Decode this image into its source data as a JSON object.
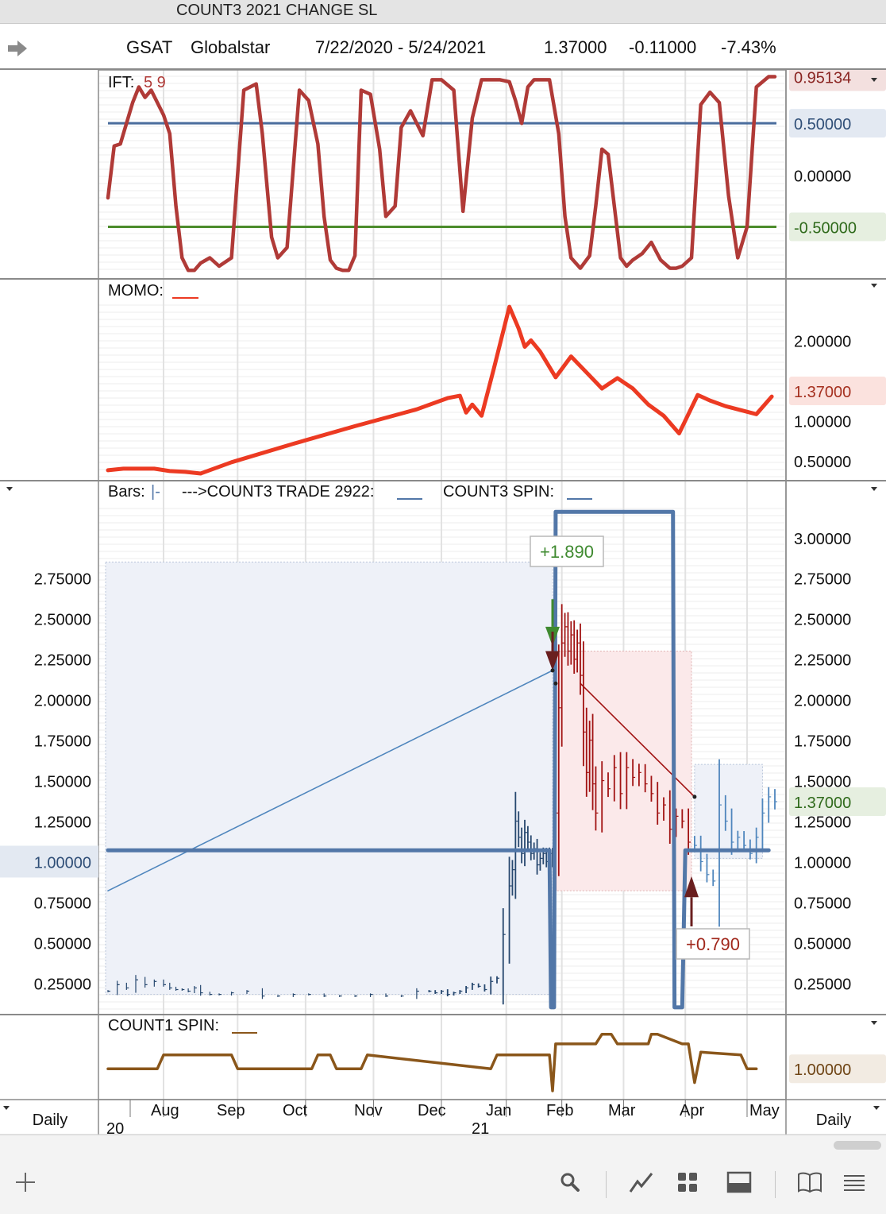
{
  "window": {
    "title": "COUNT3 2021 CHANGE SL"
  },
  "quote": {
    "symbol": "GSAT",
    "name": "Globalstar",
    "range": "7/22/2020 - 5/24/2021",
    "last": "1.37000",
    "change": "-0.11000",
    "change_pct": "-7.43%"
  },
  "footer": {
    "period_left": "Daily",
    "period_right": "Daily",
    "months": [
      "Aug",
      "Sep",
      "Oct",
      "Nov",
      "Dec",
      "Jan",
      "Feb",
      "Mar",
      "Apr",
      "May"
    ],
    "years": [
      {
        "label": "20",
        "under": "start"
      },
      {
        "label": "21",
        "under": "Jan"
      }
    ]
  },
  "toolbar": {
    "icons": [
      "add-icon",
      "search-icon",
      "line-chart-icon",
      "grid-icon",
      "panel-layout-icon",
      "book-icon",
      "menu-icon"
    ]
  },
  "colors": {
    "ift": "#b03a37",
    "momo": "#ec3a22",
    "count3_blue": "#5277a8",
    "blue_thin": "#4f86bd",
    "red_bars": "#a11212",
    "count1_brown": "#8a561a",
    "upper_band": "#4a6d9d",
    "lower_band": "#4c8c2c",
    "green_label": "#3f8a30",
    "red_label": "#a1281c"
  },
  "chart_data": [
    {
      "type": "line",
      "panel": "IFT",
      "title": "IFT:",
      "params": "5 9",
      "ylim": [
        -0.98,
        1.0
      ],
      "y_ticks": [
        "0.50000",
        "0.00000",
        "-0.50000"
      ],
      "last_value": "0.95134",
      "levels": [
        {
          "value": 0.5,
          "label": "0.50000",
          "color": "#4a6d9d"
        },
        {
          "value": -0.5,
          "label": "-0.50000",
          "color": "#4c8c2c"
        }
      ],
      "series": [
        {
          "x": [
            0,
            2,
            4,
            8,
            10,
            12,
            14,
            16,
            18,
            20,
            22,
            24,
            26,
            28,
            30,
            33,
            36,
            40,
            44,
            48,
            50,
            53,
            55,
            58,
            62,
            65,
            68,
            70,
            72,
            74,
            76,
            78,
            80,
            82,
            85,
            88,
            90,
            93,
            95,
            98,
            102,
            105,
            108,
            112,
            115,
            118,
            121,
            124,
            127,
            130,
            132,
            134,
            136,
            138,
            140,
            143,
            146,
            148,
            150,
            153,
            156,
            158,
            160,
            162,
            164,
            166,
            168,
            170,
            173,
            176,
            179,
            182,
            184,
            186,
            189,
            192,
            195,
            198,
            201,
            204,
            207,
            210,
            214,
            216
          ],
          "y": [
            -0.22,
            0.28,
            0.3,
            0.7,
            0.85,
            0.75,
            0.82,
            0.7,
            0.58,
            0.4,
            -0.3,
            -0.8,
            -0.92,
            -0.92,
            -0.85,
            -0.8,
            -0.88,
            -0.8,
            0.82,
            0.88,
            0.4,
            -0.6,
            -0.8,
            -0.7,
            0.82,
            0.72,
            0.3,
            -0.4,
            -0.82,
            -0.9,
            -0.92,
            -0.92,
            -0.78,
            0.82,
            0.78,
            0.25,
            -0.4,
            -0.3,
            0.46,
            0.62,
            0.38,
            0.92,
            0.92,
            0.82,
            -0.35,
            0.55,
            0.92,
            0.92,
            0.92,
            0.9,
            0.72,
            0.5,
            0.85,
            0.92,
            0.92,
            0.92,
            0.4,
            -0.4,
            -0.8,
            -0.9,
            -0.78,
            -0.3,
            0.25,
            0.2,
            -0.3,
            -0.8,
            -0.88,
            -0.82,
            -0.76,
            -0.65,
            -0.82,
            -0.9,
            -0.9,
            -0.88,
            -0.8,
            0.68,
            0.8,
            0.7,
            -0.2,
            -0.8,
            -0.5,
            0.85,
            0.95,
            0.95
          ]
        }
      ]
    },
    {
      "type": "line",
      "panel": "MOMO",
      "title": "MOMO:",
      "ylim": [
        0.3,
        2.48
      ],
      "y_ticks": [
        "2.00000",
        "1.00000",
        "0.50000"
      ],
      "last_value": "1.37000",
      "series": [
        {
          "x": [
            0,
            5,
            15,
            20,
            25,
            30,
            40,
            60,
            80,
            100,
            110,
            114,
            116,
            118,
            121,
            125,
            130,
            133,
            135,
            137,
            140,
            145,
            150,
            155,
            160,
            165,
            170,
            175,
            180,
            185,
            191,
            195,
            200,
            210,
            215
          ],
          "y": [
            0.38,
            0.4,
            0.4,
            0.37,
            0.36,
            0.34,
            0.48,
            0.71,
            0.93,
            1.14,
            1.28,
            1.31,
            1.1,
            1.2,
            1.06,
            1.65,
            2.42,
            2.15,
            1.92,
            2.0,
            1.86,
            1.54,
            1.8,
            1.6,
            1.4,
            1.53,
            1.4,
            1.2,
            1.06,
            0.84,
            1.32,
            1.25,
            1.18,
            1.08,
            1.3
          ]
        }
      ]
    },
    {
      "type": "bar",
      "panel": "Price",
      "title": "Bars:",
      "bar_style": "|-",
      "legend": [
        {
          "name": "--->COUNT3 TRADE 2922:",
          "color": "#5277a8"
        },
        {
          "name": "COUNT3 SPIN:",
          "color": "#5277a8"
        }
      ],
      "ylim": [
        0.08,
        3.2
      ],
      "left_ticks": [
        "2.75000",
        "2.50000",
        "2.25000",
        "2.00000",
        "1.75000",
        "1.50000",
        "1.25000",
        "1.00000",
        "0.75000",
        "0.50000",
        "0.25000"
      ],
      "right_ticks": [
        "3.00000",
        "2.75000",
        "2.50000",
        "2.25000",
        "2.00000",
        "1.75000",
        "1.50000",
        "1.25000",
        "1.00000",
        "0.75000",
        "0.50000",
        "0.25000"
      ],
      "left_highlight": "1.00000",
      "last_value": "1.37000",
      "close": {
        "x": [
          0,
          3,
          6,
          9,
          12,
          15,
          18,
          20,
          22,
          24,
          26,
          28,
          30,
          33,
          36,
          40,
          45,
          50,
          55,
          60,
          65,
          70,
          75,
          80,
          85,
          90,
          95,
          100,
          104,
          106,
          108,
          110,
          112,
          114,
          116,
          118,
          120,
          122,
          124,
          126,
          128,
          130,
          131,
          132,
          133,
          134,
          135,
          136,
          137,
          138,
          139,
          140,
          141,
          142,
          143,
          144,
          145,
          146,
          147,
          148,
          149,
          150,
          151,
          152,
          153,
          154,
          155,
          156,
          157,
          158,
          160,
          162,
          164,
          166,
          168,
          170,
          172,
          174,
          176,
          178,
          180,
          182,
          184,
          186,
          188,
          190,
          192,
          194,
          196,
          198,
          200,
          202,
          204,
          206,
          208,
          210,
          212,
          214,
          216
        ],
        "y": [
          0.2,
          0.24,
          0.22,
          0.27,
          0.24,
          0.26,
          0.24,
          0.22,
          0.21,
          0.21,
          0.2,
          0.22,
          0.19,
          0.18,
          0.18,
          0.19,
          0.2,
          0.17,
          0.17,
          0.18,
          0.18,
          0.17,
          0.17,
          0.17,
          0.18,
          0.17,
          0.17,
          0.2,
          0.2,
          0.19,
          0.2,
          0.18,
          0.19,
          0.2,
          0.22,
          0.24,
          0.23,
          0.21,
          0.26,
          0.28,
          0.55,
          0.85,
          0.95,
          1.25,
          1.15,
          1.05,
          1.18,
          1.12,
          1.05,
          1.08,
          0.98,
          1.02,
          1.05,
          1.0,
          1.05,
          1.0,
          1.3,
          1.95,
          2.35,
          2.45,
          2.3,
          2.4,
          2.25,
          2.35,
          2.15,
          1.8,
          1.55,
          1.75,
          1.48,
          1.3,
          1.5,
          1.45,
          1.58,
          1.42,
          1.58,
          1.52,
          1.55,
          1.48,
          1.42,
          1.3,
          1.35,
          1.2,
          1.28,
          1.25,
          1.12,
          1.1,
          1.0,
          0.92,
          0.88,
          1.35,
          1.25,
          1.12,
          1.15,
          1.1,
          1.05,
          1.15,
          1.3,
          1.4,
          1.37
        ]
      },
      "trend": {
        "x": [
          0,
          144,
          153,
          190
        ],
        "y": [
          0.82,
          2.18,
          2.1,
          1.4
        ]
      },
      "count3_trade_band": {
        "upper": 1.07,
        "from_x": 0,
        "to_x": 214
      },
      "count3_trade_step": {
        "x": [
          0,
          143,
          143.5,
          144.5,
          145,
          183,
          183.5,
          186,
          187,
          190.5,
          191,
          214
        ],
        "y": [
          1.07,
          1.07,
          0.1,
          0.1,
          3.16,
          3.16,
          0.1,
          0.1,
          1.07,
          1.07,
          1.07,
          1.07
        ]
      },
      "trades": [
        {
          "label": "+1.890",
          "type": "long",
          "entry_x": 0,
          "exit_x": 144,
          "range": [
            0.18,
            2.85
          ],
          "color": "#3f8a30"
        },
        {
          "label": "+0.790",
          "type": "short",
          "entry_x": 145,
          "exit_x": 189,
          "range": [
            0.82,
            2.3
          ],
          "color": "#a1281c"
        },
        {
          "label": "",
          "type": "long",
          "entry_x": 190,
          "exit_x": 212,
          "range": [
            1.02,
            1.6
          ],
          "color": "#5277a8"
        }
      ]
    },
    {
      "type": "line",
      "panel": "COUNT1",
      "title": "COUNT1 SPIN:",
      "ylim": [
        0.0,
        2.3
      ],
      "y_ticks": [
        "1.00000"
      ],
      "last_value": "1.00000",
      "series": [
        {
          "x": [
            0,
            16,
            18,
            40,
            42,
            66,
            68,
            72,
            74,
            82,
            84,
            124,
            126,
            143,
            144,
            145,
            146,
            158,
            160,
            163,
            165,
            173,
            175,
            176,
            178,
            186,
            188,
            190,
            192,
            205,
            207,
            210
          ],
          "y": [
            1.0,
            1.0,
            1.5,
            1.5,
            1.0,
            1.0,
            1.5,
            1.5,
            1.0,
            1.0,
            1.5,
            1.0,
            1.5,
            1.5,
            0.2,
            1.9,
            1.9,
            1.9,
            2.25,
            2.25,
            1.9,
            1.9,
            1.9,
            2.25,
            2.25,
            1.9,
            1.9,
            0.5,
            1.6,
            1.5,
            1.0,
            1.0
          ]
        }
      ]
    }
  ]
}
